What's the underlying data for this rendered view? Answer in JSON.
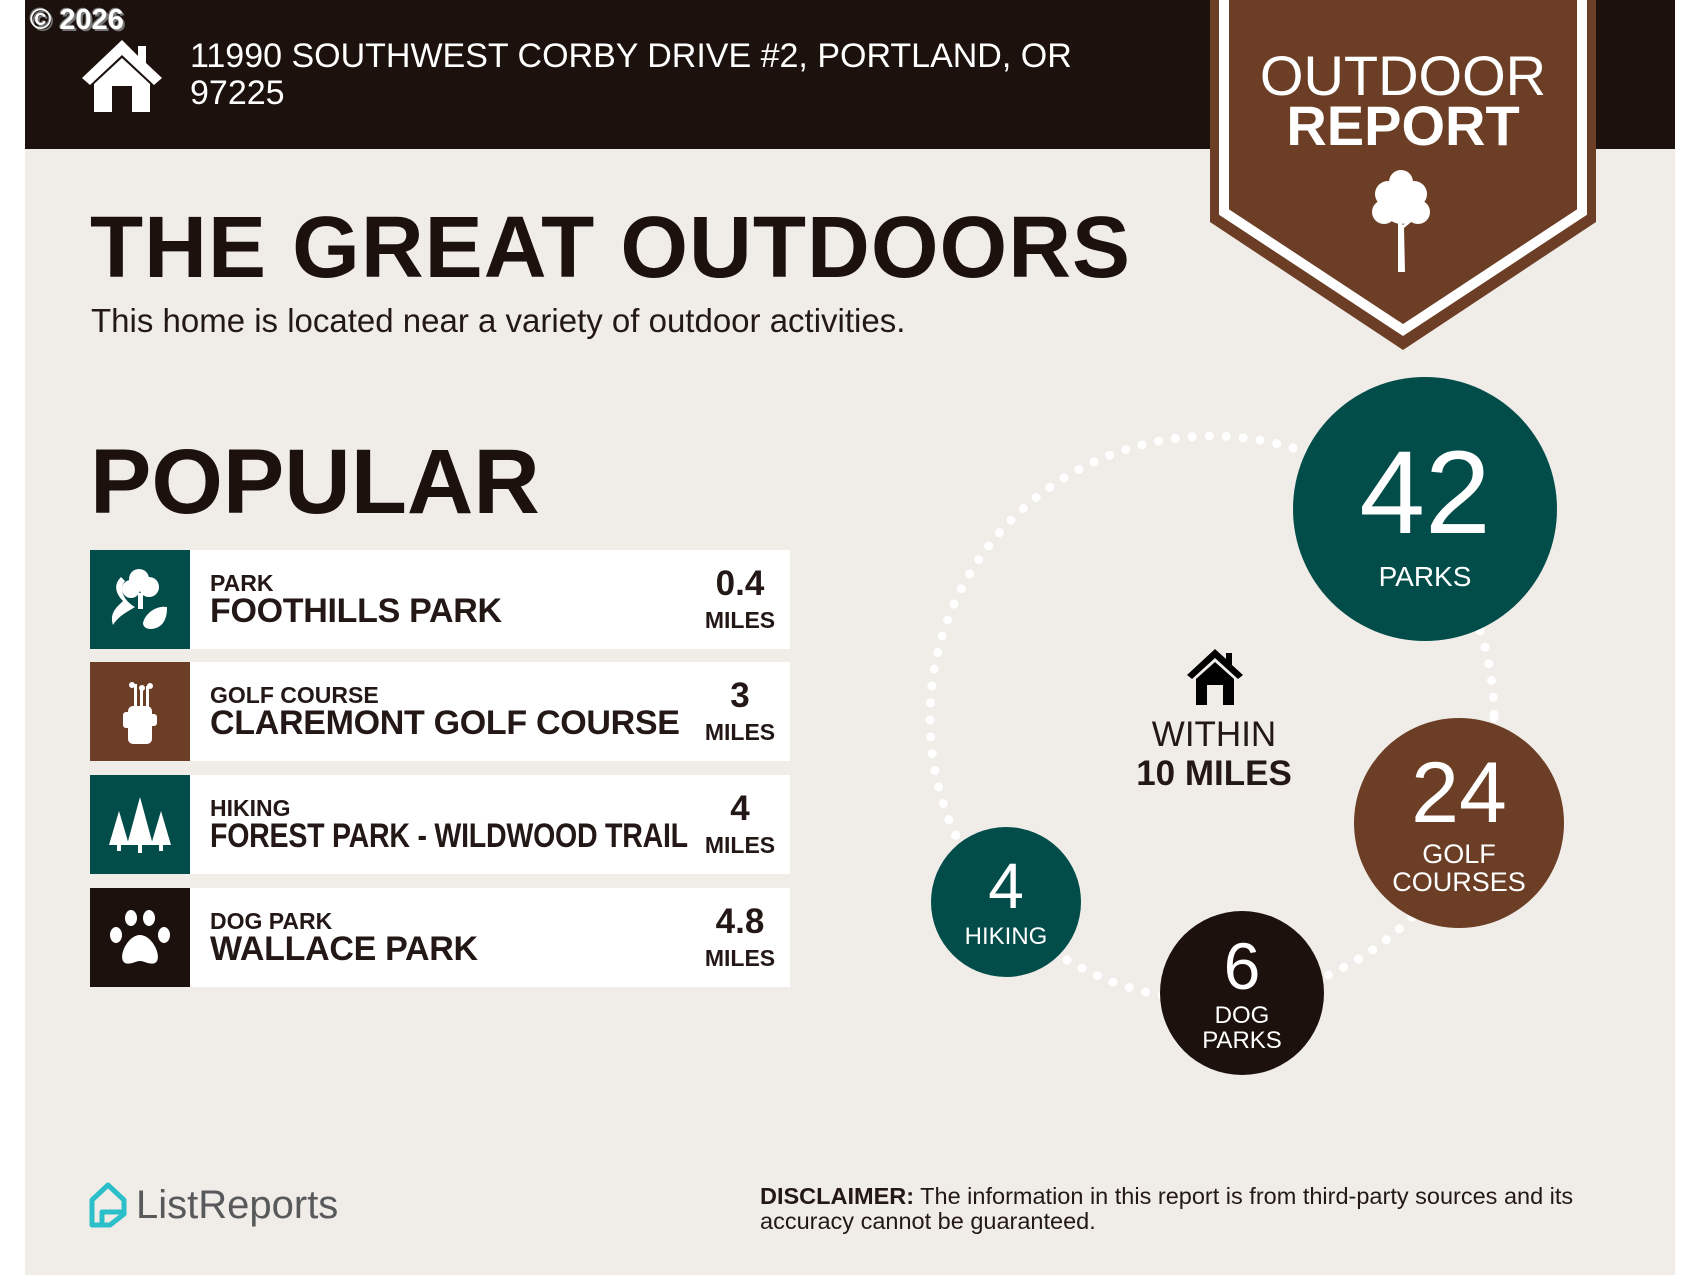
{
  "copyright": "© 2026",
  "header": {
    "address_line1": "11990 SOUTHWEST CORBY DRIVE #2, PORTLAND, OR",
    "address_line2": "97225"
  },
  "badge": {
    "line1": "OUTDOOR",
    "line2": "REPORT",
    "icon": "tree-icon"
  },
  "hero": {
    "title": "THE GREAT OUTDOORS",
    "subtitle": "This home is located near a variety of outdoor activities."
  },
  "popular": {
    "heading": "POPULAR",
    "items": [
      {
        "category": "PARK",
        "name": "FOOTHILLS PARK",
        "distance": "0.4",
        "unit": "MILES",
        "icon": "park-icon",
        "color": "#024d4a"
      },
      {
        "category": "GOLF COURSE",
        "name": "CLAREMONT GOLF COURSE",
        "distance": "3",
        "unit": "MILES",
        "icon": "golf-bag-icon",
        "color": "#6b3e25"
      },
      {
        "category": "HIKING",
        "name": "FOREST PARK - WILDWOOD TRAIL",
        "distance": "4",
        "unit": "MILES",
        "icon": "pine-trees-icon",
        "color": "#024d4a"
      },
      {
        "category": "DOG PARK",
        "name": "WALLACE PARK",
        "distance": "4.8",
        "unit": "MILES",
        "icon": "paw-icon",
        "color": "#1c110d"
      }
    ]
  },
  "summary": {
    "within_line1": "WITHIN",
    "within_line2": "10 MILES",
    "counts": [
      {
        "count": "42",
        "label": "PARKS",
        "color": "#024d4a"
      },
      {
        "count": "24",
        "label": "GOLF COURSES",
        "label1": "GOLF",
        "label2": "COURSES",
        "color": "#6b3e25"
      },
      {
        "count": "4",
        "label": "HIKING",
        "color": "#024d4a"
      },
      {
        "count": "6",
        "label": "DOG PARKS",
        "label1": "DOG",
        "label2": "PARKS",
        "color": "#1c110d"
      }
    ]
  },
  "footer": {
    "logo_text": "ListReports",
    "disclaimer_bold": "DISCLAIMER:",
    "disclaimer_text": " The information in this report is from third-party sources and its accuracy cannot be guaranteed."
  },
  "colors": {
    "teal": "#024d4a",
    "brown": "#6b3e25",
    "dark": "#1c110d",
    "background": "#f0ece8",
    "logo": "#2bbfc9"
  }
}
